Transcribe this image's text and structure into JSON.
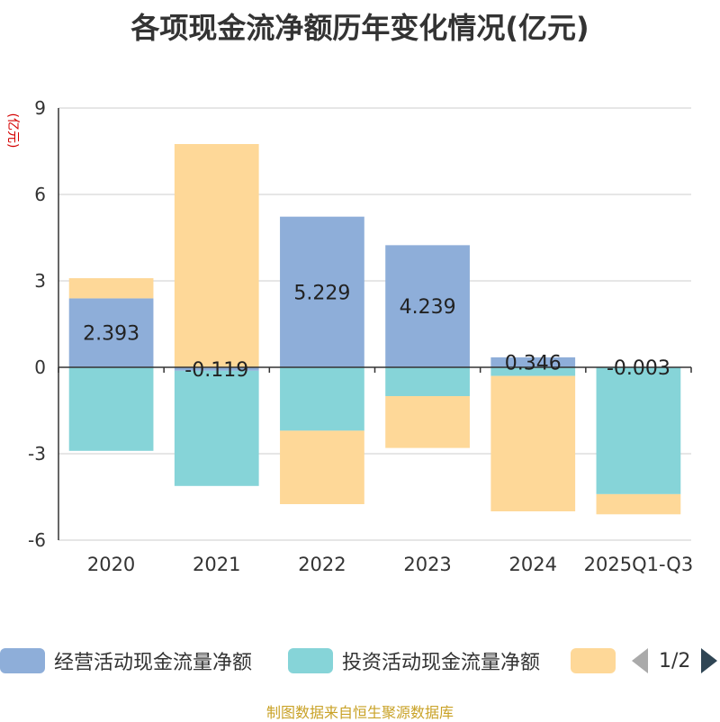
{
  "title": "各项现金流净额历年变化情况(亿元)",
  "source": "制图数据来自恒生聚源数据库",
  "legend": {
    "items": [
      {
        "label": "经营活动现金流量净额",
        "color": "#8eaed9"
      },
      {
        "label": "投资活动现金流量净额",
        "color": "#86d4d8"
      },
      {
        "label": "",
        "color": "#fed898"
      }
    ],
    "pager": "1/2"
  },
  "chart_data": {
    "type": "bar",
    "stacked": true,
    "ylabel": "(亿元)",
    "ylim": [
      -6,
      9
    ],
    "yticks": [
      -6,
      -3,
      0,
      3,
      6,
      9
    ],
    "grid": true,
    "categories": [
      "2020",
      "2021",
      "2022",
      "2023",
      "2024",
      "2025Q1-Q3"
    ],
    "series": [
      {
        "name": "经营活动现金流量净额",
        "color": "#8eaed9",
        "values": [
          2.393,
          -0.119,
          5.229,
          4.239,
          0.346,
          -0.003
        ],
        "labels": [
          "2.393",
          "-0.119",
          "5.229",
          "4.239",
          "0.346",
          "-0.003"
        ]
      },
      {
        "name": "投资活动现金流量净额",
        "color": "#86d4d8",
        "values": [
          -2.9,
          -4.0,
          -2.2,
          -1.0,
          -0.3,
          -4.4
        ]
      },
      {
        "name": "",
        "color": "#fed898",
        "values": [
          0.7,
          7.75,
          -2.55,
          -1.8,
          -4.7,
          -0.7
        ]
      }
    ]
  }
}
